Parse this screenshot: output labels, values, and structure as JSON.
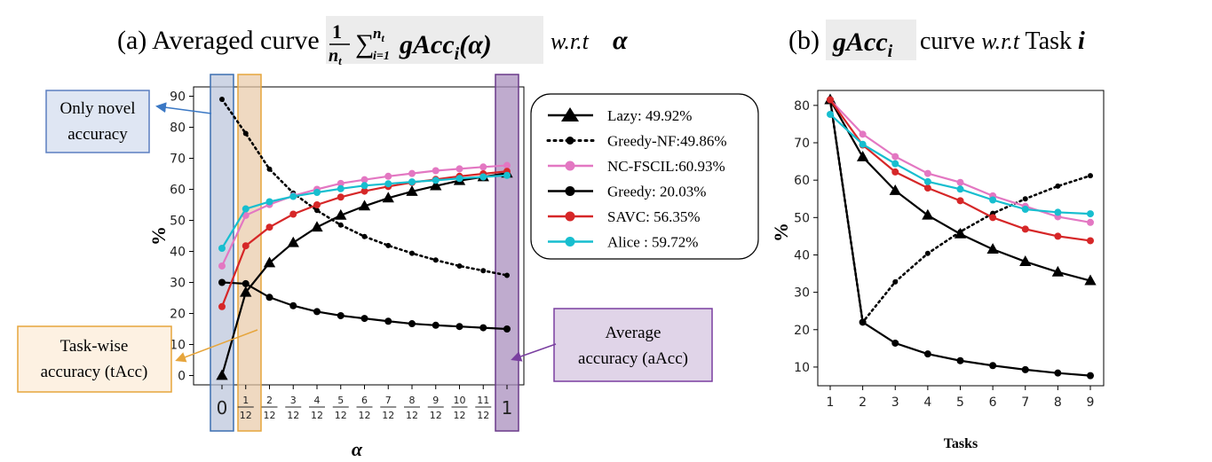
{
  "chart_data": [
    {
      "type": "line",
      "title": {
        "prefix": "(a) Averaged curve",
        "suffix": "w.r.t"
      },
      "xlabel": "α",
      "ylabel": "%",
      "x": [
        "0",
        "1/12",
        "2/12",
        "3/12",
        "4/12",
        "5/12",
        "6/12",
        "7/12",
        "8/12",
        "9/12",
        "10/12",
        "11/12",
        "1"
      ],
      "ylim": [
        -3,
        93
      ],
      "yticks": [
        0,
        10,
        20,
        30,
        40,
        50,
        60,
        70,
        80,
        90
      ],
      "legend_position": "top-right",
      "series": [
        {
          "name": "Lazy: 49.92%",
          "color": "#000000",
          "marker": "triangle",
          "style": "solid",
          "values": [
            0,
            26.8,
            36.3,
            42.8,
            47.8,
            51.6,
            54.6,
            57.2,
            59.3,
            61.1,
            62.8,
            64.0,
            65.2
          ]
        },
        {
          "name": "Greedy-NF:49.86%",
          "color": "#000000",
          "marker": "dot-small",
          "style": "dotted",
          "values": [
            89,
            78,
            66.5,
            58.8,
            53.2,
            48.5,
            44.8,
            41.9,
            39.4,
            37.2,
            35.3,
            33.8,
            32.3
          ]
        },
        {
          "name": "NC-FSCIL:60.93%",
          "color": "#e377c2",
          "marker": "circle",
          "style": "solid",
          "values": [
            35.3,
            51.6,
            55.1,
            57.9,
            60.0,
            61.9,
            63.1,
            64.2,
            65.1,
            66.0,
            66.6,
            67.2,
            67.7
          ]
        },
        {
          "name": "Greedy: 20.03%",
          "color": "#000000",
          "marker": "circle",
          "style": "solid",
          "values": [
            30,
            29.6,
            25.2,
            22.5,
            20.6,
            19.3,
            18.4,
            17.5,
            16.7,
            16.2,
            15.8,
            15.4,
            15.0
          ]
        },
        {
          "name": "SAVC:  56.35%",
          "color": "#d62728",
          "marker": "circle",
          "style": "solid",
          "values": [
            22.2,
            41.8,
            47.8,
            52.0,
            55.0,
            57.5,
            59.4,
            60.9,
            62.2,
            63.2,
            64.2,
            65.0,
            65.8
          ]
        },
        {
          "name": "Alice :  59.72%",
          "color": "#17becf",
          "marker": "circle",
          "style": "solid",
          "values": [
            41,
            53.7,
            56.0,
            57.7,
            59.0,
            60.2,
            61.2,
            61.8,
            62.4,
            62.9,
            63.5,
            64.0,
            64.5
          ]
        }
      ],
      "annotations": [
        {
          "label": "Only novel accuracy",
          "target_x": "0",
          "box_color": "#dfe6f3",
          "border_color": "#5b7fc0"
        },
        {
          "label": "Task-wise accuracy (tAcc)",
          "target_x": "1/12",
          "box_color": "#fdf1e2",
          "border_color": "#e6a53c"
        },
        {
          "label": "Average accuracy (aAcc)",
          "target_x": "1",
          "box_color": "#e0d4e8",
          "border_color": "#7a3fa0"
        }
      ]
    },
    {
      "type": "line",
      "title": {
        "prefix": "(b)",
        "suffix": "curve w.r.t Task"
      },
      "xlabel": "Tasks",
      "ylabel": "%",
      "x": [
        1,
        2,
        3,
        4,
        5,
        6,
        7,
        8,
        9
      ],
      "ylim": [
        5,
        84
      ],
      "yticks": [
        10,
        20,
        30,
        40,
        50,
        60,
        70,
        80
      ],
      "series": [
        {
          "name": "Lazy",
          "color": "#000000",
          "marker": "triangle",
          "style": "solid",
          "values": [
            81.5,
            66.2,
            57.2,
            50.6,
            45.6,
            41.5,
            38.2,
            35.4,
            33.1
          ]
        },
        {
          "name": "Greedy-NF",
          "color": "#000000",
          "marker": "dot-small",
          "style": "dotted",
          "values": [
            81.5,
            22,
            32.8,
            40.4,
            46.2,
            51.1,
            55.0,
            58.4,
            61.2
          ]
        },
        {
          "name": "NC-FSCIL",
          "color": "#e377c2",
          "marker": "circle",
          "style": "solid",
          "values": [
            81.5,
            72.3,
            66.3,
            61.8,
            59.4,
            55.8,
            53.0,
            50.2,
            48.7
          ]
        },
        {
          "name": "Greedy",
          "color": "#000000",
          "marker": "circle",
          "style": "solid",
          "values": [
            81.5,
            22,
            16.4,
            13.5,
            11.7,
            10.4,
            9.3,
            8.4,
            7.7
          ]
        },
        {
          "name": "SAVC",
          "color": "#d62728",
          "marker": "circle",
          "style": "solid",
          "values": [
            81.5,
            69.4,
            62.2,
            57.9,
            54.5,
            50.0,
            46.9,
            45.0,
            43.8
          ]
        },
        {
          "name": "Alice",
          "color": "#17becf",
          "marker": "circle",
          "style": "solid",
          "values": [
            77.6,
            69.6,
            64.4,
            59.6,
            57.6,
            54.7,
            52.2,
            51.4,
            51.0
          ]
        }
      ]
    }
  ]
}
